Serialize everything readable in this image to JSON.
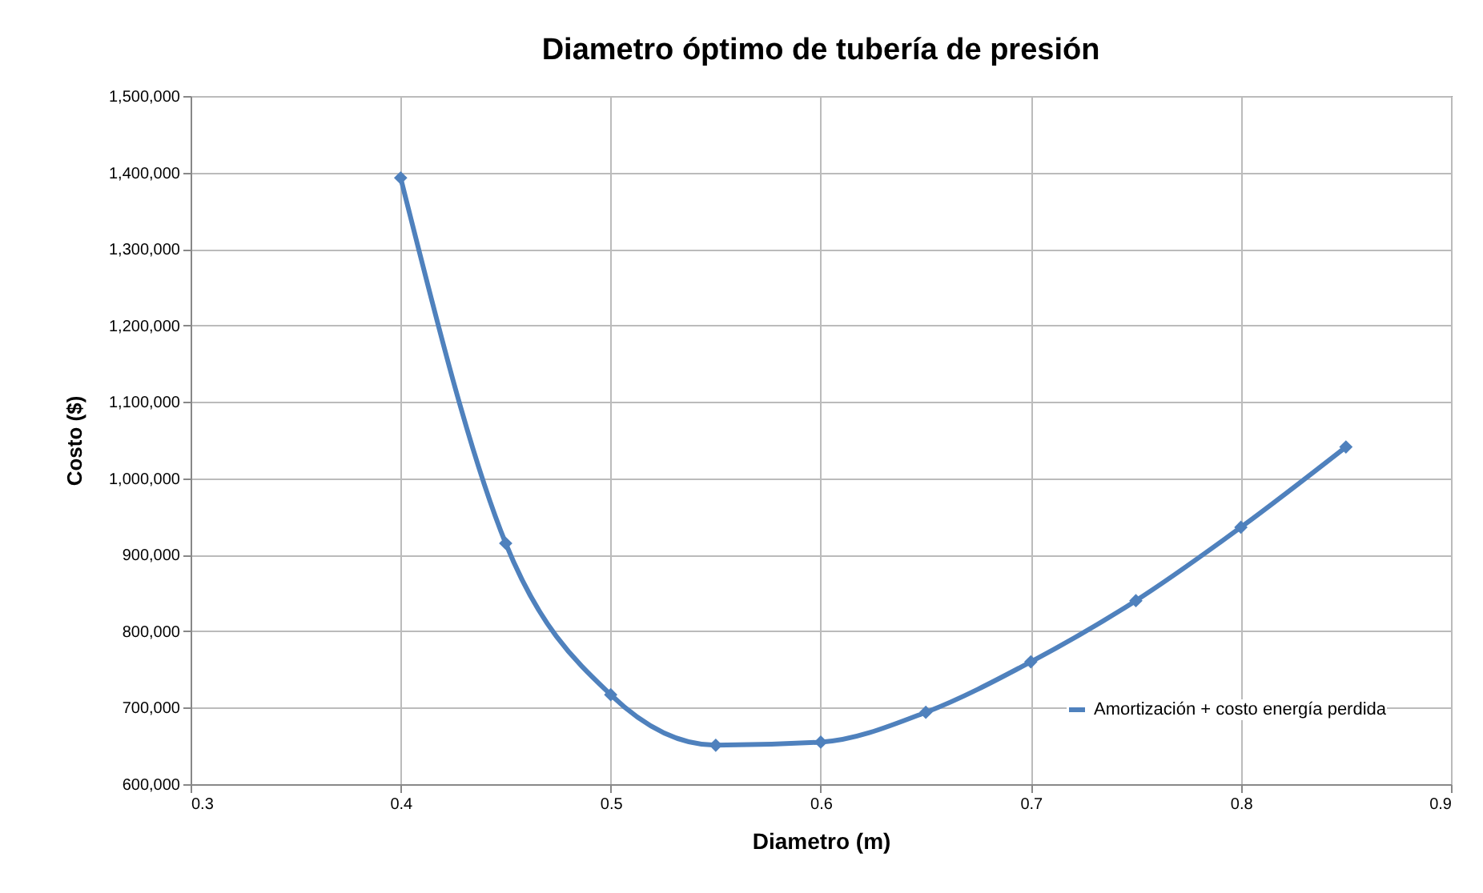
{
  "chart_data": {
    "type": "line",
    "title": "Diametro óptimo de tubería de presión",
    "xlabel": "Diametro (m)",
    "ylabel": "Costo ($)",
    "x": [
      0.4,
      0.45,
      0.5,
      0.55,
      0.6,
      0.65,
      0.7,
      0.75,
      0.8,
      0.85
    ],
    "series": [
      {
        "name": "Amortización + costo energía perdida",
        "color": "#4f81bd",
        "values": [
          1393000,
          915000,
          717000,
          651000,
          655000,
          694000,
          760000,
          840000,
          936000,
          1041000
        ]
      }
    ],
    "xlim": [
      0.3,
      0.9
    ],
    "xticks": [
      0.3,
      0.4,
      0.5,
      0.6,
      0.7,
      0.8,
      0.9
    ],
    "ylim": [
      600000,
      1500000
    ],
    "yticks": [
      {
        "value": 600000,
        "label": "600,000"
      },
      {
        "value": 700000,
        "label": "700,000"
      },
      {
        "value": 800000,
        "label": "800,000"
      },
      {
        "value": 900000,
        "label": "900,000"
      },
      {
        "value": 1000000,
        "label": "1,000,000"
      },
      {
        "value": 1100000,
        "label": "1,100,000"
      },
      {
        "value": 1200000,
        "label": "1,200,000"
      },
      {
        "value": 1300000,
        "label": "1,300,000"
      },
      {
        "value": 1400000,
        "label": "1,400,000"
      },
      {
        "value": 1500000,
        "label": "1,500,000"
      }
    ],
    "grid": true,
    "legend": "bottom right",
    "marker": "diamond",
    "line_style": "solid"
  }
}
